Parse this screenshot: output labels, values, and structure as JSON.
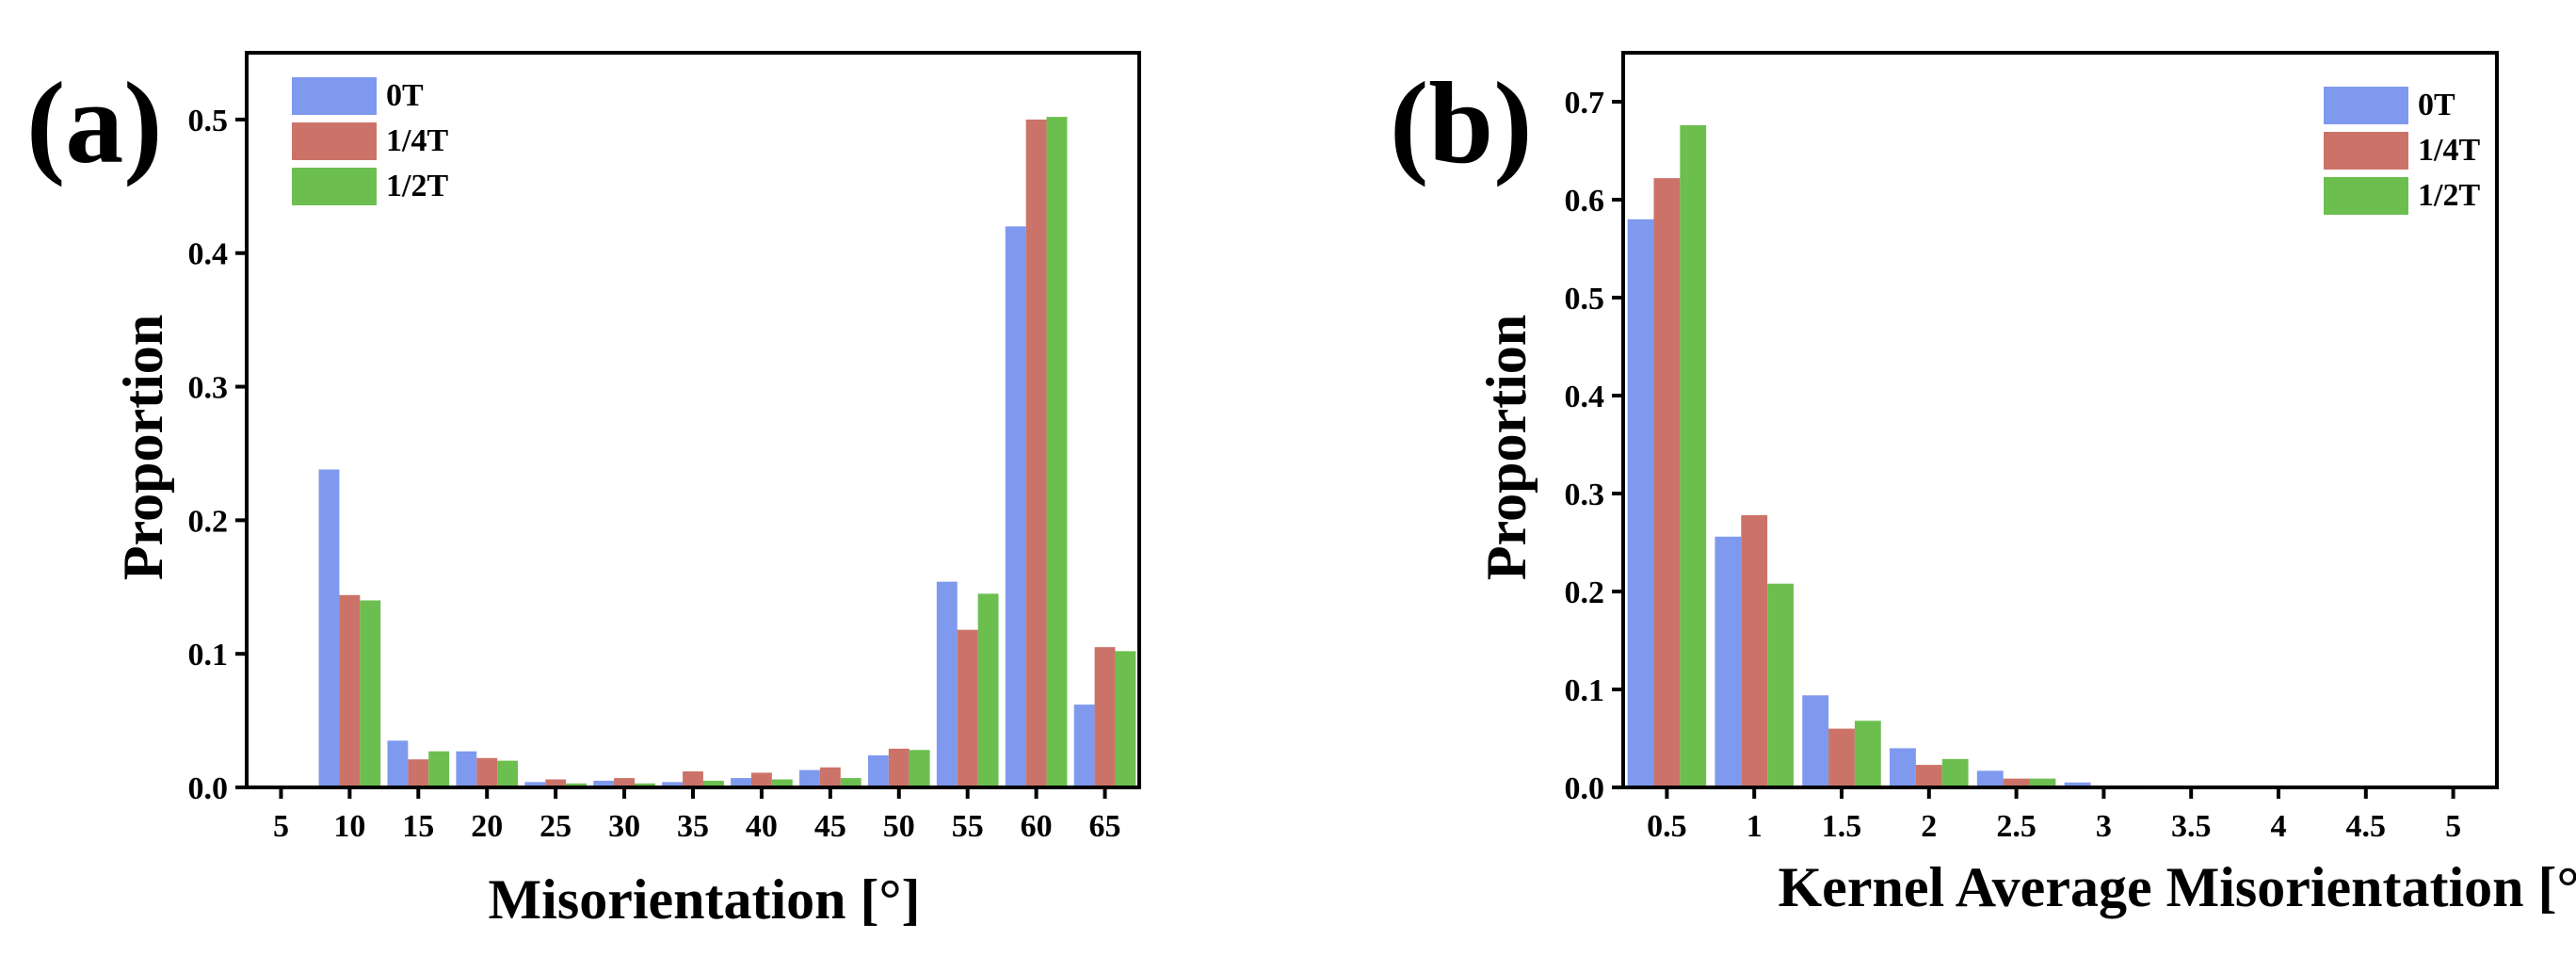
{
  "chart_data": [
    {
      "type": "bar",
      "panel_label": "(a)",
      "title": "",
      "xlabel": "Misorientation [°]",
      "ylabel": "Proportion",
      "categories": [
        "5",
        "10",
        "15",
        "20",
        "25",
        "30",
        "35",
        "40",
        "45",
        "50",
        "55",
        "60",
        "65"
      ],
      "ylim": [
        0,
        0.55
      ],
      "yticks": [
        0.0,
        0.1,
        0.2,
        0.3,
        0.4,
        0.5
      ],
      "ytick_labels": [
        "0.0",
        "0.1",
        "0.2",
        "0.3",
        "0.4",
        "0.5"
      ],
      "legend_position": "top-left",
      "series": [
        {
          "name": "0T",
          "color": "#7f99ee",
          "values": [
            0.0,
            0.238,
            0.035,
            0.027,
            0.004,
            0.005,
            0.004,
            0.007,
            0.013,
            0.024,
            0.154,
            0.42,
            0.062
          ]
        },
        {
          "name": "1/4T",
          "color": "#cc7369",
          "values": [
            0.0,
            0.144,
            0.021,
            0.022,
            0.006,
            0.007,
            0.012,
            0.011,
            0.015,
            0.029,
            0.118,
            0.5,
            0.105
          ]
        },
        {
          "name": "1/2T",
          "color": "#6cbf4f",
          "values": [
            0.0,
            0.14,
            0.027,
            0.02,
            0.003,
            0.003,
            0.005,
            0.006,
            0.007,
            0.028,
            0.145,
            0.502,
            0.102
          ]
        }
      ]
    },
    {
      "type": "bar",
      "panel_label": "(b)",
      "title": "",
      "xlabel": "Kernel Average Misorientation [°]",
      "ylabel": "Proportion",
      "categories": [
        "0.5",
        "1",
        "1.5",
        "2",
        "2.5",
        "3",
        "3.5",
        "4",
        "4.5",
        "5"
      ],
      "ylim": [
        0,
        0.75
      ],
      "yticks": [
        0.0,
        0.1,
        0.2,
        0.3,
        0.4,
        0.5,
        0.6,
        0.7
      ],
      "ytick_labels": [
        "0.0",
        "0.1",
        "0.2",
        "0.3",
        "0.4",
        "0.5",
        "0.6",
        "0.7"
      ],
      "legend_position": "top-right",
      "series": [
        {
          "name": "0T",
          "color": "#7f99ee",
          "values": [
            0.58,
            0.256,
            0.094,
            0.04,
            0.017,
            0.005,
            0.0,
            0.0,
            0.0,
            0.0
          ]
        },
        {
          "name": "1/4T",
          "color": "#cc7369",
          "values": [
            0.622,
            0.278,
            0.06,
            0.023,
            0.009,
            0.002,
            0.0,
            0.0,
            0.0,
            0.0
          ]
        },
        {
          "name": "1/2T",
          "color": "#6cbf4f",
          "values": [
            0.676,
            0.208,
            0.068,
            0.029,
            0.009,
            0.002,
            0.0,
            0.0,
            0.0,
            0.0
          ]
        }
      ]
    }
  ]
}
